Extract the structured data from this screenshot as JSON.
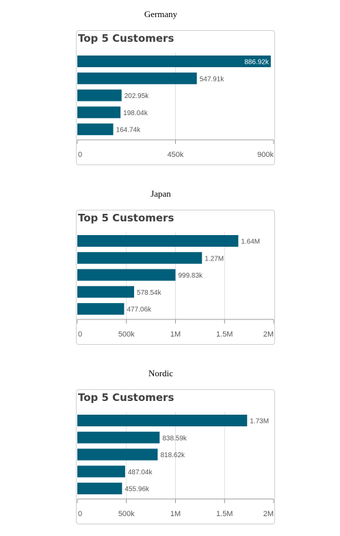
{
  "chart_data": [
    {
      "type": "bar",
      "orientation": "horizontal",
      "region": "Germany",
      "title": "Top 5 Customers",
      "values": [
        886920,
        547910,
        202950,
        198040,
        164740
      ],
      "value_labels": [
        "886.92k",
        "547.91k",
        "202.95k",
        "198.04k",
        "164.74k"
      ],
      "xlim": [
        0,
        900000
      ],
      "ticks": [
        0,
        450000,
        900000
      ],
      "tick_labels": [
        "0",
        "450k",
        "900k"
      ],
      "grid": true,
      "color": "#005f7a"
    },
    {
      "type": "bar",
      "orientation": "horizontal",
      "region": "Japan",
      "title": "Top 5 Customers",
      "values": [
        1640000,
        1270000,
        999830,
        578540,
        477060
      ],
      "value_labels": [
        "1.64M",
        "1.27M",
        "999.83k",
        "578.54k",
        "477.06k"
      ],
      "xlim": [
        0,
        2000000
      ],
      "ticks": [
        0,
        500000,
        1000000,
        1500000,
        2000000
      ],
      "tick_labels": [
        "0",
        "500k",
        "1M",
        "1.5M",
        "2M"
      ],
      "grid": true,
      "color": "#005f7a"
    },
    {
      "type": "bar",
      "orientation": "horizontal",
      "region": "Nordic",
      "title": "Top 5 Customers",
      "values": [
        1730000,
        838590,
        818620,
        487040,
        455960
      ],
      "value_labels": [
        "1.73M",
        "838.59k",
        "818.62k",
        "487.04k",
        "455.96k"
      ],
      "xlim": [
        0,
        2000000
      ],
      "ticks": [
        0,
        500000,
        1000000,
        1500000,
        2000000
      ],
      "tick_labels": [
        "0",
        "500k",
        "1M",
        "1.5M",
        "2M"
      ],
      "grid": true,
      "color": "#005f7a"
    }
  ]
}
